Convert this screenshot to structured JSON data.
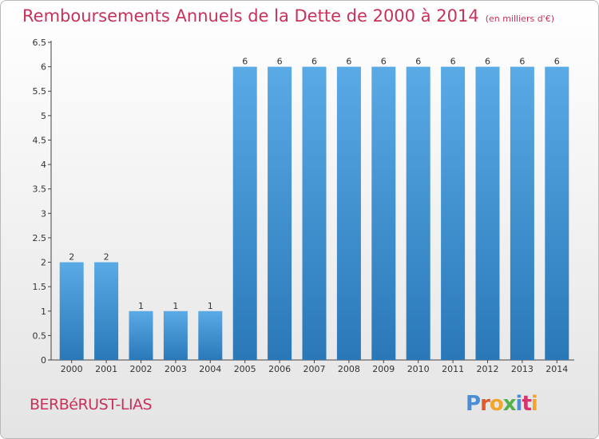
{
  "header": {
    "title": "Remboursements Annuels de la Dette de 2000 à 2014",
    "unit": "(en milliers d'€)"
  },
  "footer": {
    "commune": "BERBéRUST-LIAS",
    "brand": "Proxiti"
  },
  "colors": {
    "title": "#c8325a",
    "bar_top": "#5aaae6",
    "bar_bottom": "#2a78b8",
    "logo_letters": [
      "#4a8fd6",
      "#e05a2b",
      "#f2a52b",
      "#55b04a",
      "#4a8fd6",
      "#d6336c",
      "#f2a52b"
    ]
  },
  "chart_data": {
    "type": "bar",
    "title": "Remboursements Annuels de la Dette de 2000 à 2014",
    "subtitle": "(en milliers d'€)",
    "categories": [
      "2000",
      "2001",
      "2002",
      "2003",
      "2004",
      "2005",
      "2006",
      "2007",
      "2008",
      "2009",
      "2010",
      "2011",
      "2012",
      "2013",
      "2014"
    ],
    "values": [
      2,
      2,
      1,
      1,
      1,
      6,
      6,
      6,
      6,
      6,
      6,
      6,
      6,
      6,
      6
    ],
    "data_labels": [
      "2",
      "2",
      "1",
      "1",
      "1",
      "6",
      "6",
      "6",
      "6",
      "6",
      "6",
      "6",
      "6",
      "6",
      "6"
    ],
    "ylim": [
      0,
      6.5
    ],
    "yticks": [
      "0",
      "0.5",
      "1",
      "1.5",
      "2",
      "2.5",
      "3",
      "3.5",
      "4",
      "4.5",
      "5",
      "5.5",
      "6",
      "6.5"
    ],
    "grid": false,
    "legend": "none"
  }
}
